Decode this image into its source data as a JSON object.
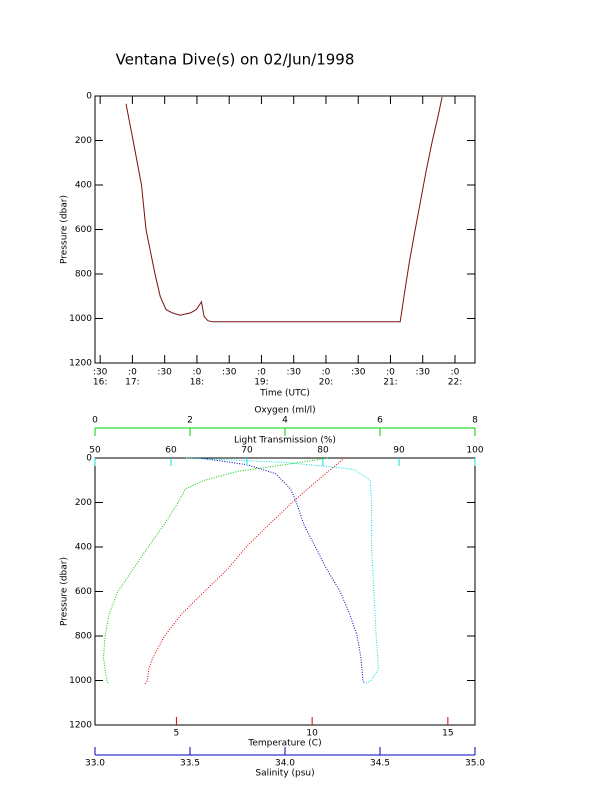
{
  "chart_data": [
    {
      "type": "line",
      "title": "Ventana Dive(s) on 02/Jun/1998",
      "xlabel": "Time (UTC)",
      "ylabel": "Pressure (dbar)",
      "xlim": [
        16.42,
        22.31
      ],
      "xticks": [
        {
          "value": 16.5,
          "label": [
            ":30",
            "16:"
          ]
        },
        {
          "value": 17,
          "label": [
            ":0",
            "17:"
          ]
        },
        {
          "value": 17.5,
          "label": ":30"
        },
        {
          "value": 18,
          "label": [
            ":0",
            "18:"
          ]
        },
        {
          "value": 18.5,
          "label": ":30"
        },
        {
          "value": 19,
          "label": [
            ":0",
            "19:"
          ]
        },
        {
          "value": 19.5,
          "label": ":30"
        },
        {
          "value": 20,
          "label": [
            ":0",
            "20:"
          ]
        },
        {
          "value": 20.5,
          "label": ":30"
        },
        {
          "value": 21,
          "label": [
            ":0",
            "21:"
          ]
        },
        {
          "value": 21.5,
          "label": ":30"
        },
        {
          "value": 22,
          "label": [
            ":0",
            "22:"
          ]
        }
      ],
      "ylim": [
        1200,
        0
      ],
      "yticks": [
        0,
        200,
        400,
        600,
        800,
        1000,
        1200
      ],
      "color": "#7a1010",
      "x": [
        16.9,
        17.01,
        17.14,
        17.21,
        17.35,
        17.43,
        17.52,
        17.62,
        17.74,
        17.9,
        17.99,
        18.07,
        18.11,
        18.17,
        18.24,
        21.15,
        21.21,
        21.29,
        21.37,
        21.46,
        21.55,
        21.65,
        21.73,
        21.8
      ],
      "values": [
        35,
        200,
        400,
        600,
        800,
        900,
        960,
        975,
        985,
        975,
        960,
        925,
        990,
        1010,
        1015,
        1015,
        900,
        750,
        620,
        480,
        340,
        200,
        100,
        5
      ]
    },
    {
      "type": "profile",
      "ylabel": "Pressure (dbar)",
      "ylim": [
        1200,
        0
      ],
      "yticks": [
        0,
        200,
        400,
        600,
        800,
        1000,
        1200
      ],
      "series": [
        {
          "name": "Temperature (C)",
          "color": "#e00000",
          "xaxis": "bottom",
          "xlim": [
            2,
            16
          ],
          "xticks": [
            5,
            10,
            15
          ],
          "x": [
            11.2,
            10.7,
            10.2,
            9.26,
            8.4,
            7.57,
            6.88,
            6.03,
            5.2,
            4.56,
            4.12,
            3.98,
            3.93,
            3.85
          ],
          "values": [
            0,
            50,
            100,
            200,
            300,
            400,
            500,
            600,
            700,
            800,
            900,
            950,
            1000,
            1015
          ]
        },
        {
          "name": "Salinity (psu)",
          "color": "#0000c0",
          "xaxis": "bottom",
          "xlim": [
            33,
            35
          ],
          "xticks": [
            {
              "value": 33,
              "label": "33.0"
            },
            33.5,
            {
              "value": 34,
              "label": "34.0"
            },
            34.5,
            {
              "value": 35,
              "label": "35.0"
            }
          ],
          "x": [
            33.55,
            33.8,
            33.95,
            34.03,
            34.06,
            34.1,
            34.16,
            34.22,
            34.29,
            34.34,
            34.38,
            34.4,
            34.41,
            34.42
          ],
          "values": [
            0,
            30,
            70,
            140,
            200,
            300,
            400,
            500,
            600,
            700,
            800,
            900,
            1000,
            1015
          ]
        },
        {
          "name": "Light Transmission (%)",
          "color": "#00e0e0",
          "xaxis": "top",
          "xlim": [
            50,
            100
          ],
          "xticks": [
            50,
            60,
            70,
            80,
            90,
            100
          ],
          "x": [
            62,
            75,
            84,
            86.2,
            86.4,
            86.4,
            86.7,
            87,
            87.3,
            86.3,
            85.5
          ],
          "values": [
            0,
            20,
            50,
            100,
            200,
            400,
            600,
            800,
            950,
            1000,
            1015
          ]
        },
        {
          "name": "Oxygen (ml/l)",
          "color": "#00d000",
          "xaxis": "top",
          "xlim": [
            0,
            8
          ],
          "xticks": [
            0,
            2,
            4,
            6,
            8
          ],
          "x": [
            4.9,
            4,
            3,
            2.3,
            1.9,
            1.75,
            1.45,
            1.12,
            0.8,
            0.48,
            0.3,
            0.21,
            0.18,
            0.25,
            0.28
          ],
          "values": [
            0,
            30,
            60,
            100,
            140,
            200,
            300,
            400,
            500,
            600,
            700,
            800,
            900,
            1000,
            1015
          ]
        }
      ]
    }
  ]
}
